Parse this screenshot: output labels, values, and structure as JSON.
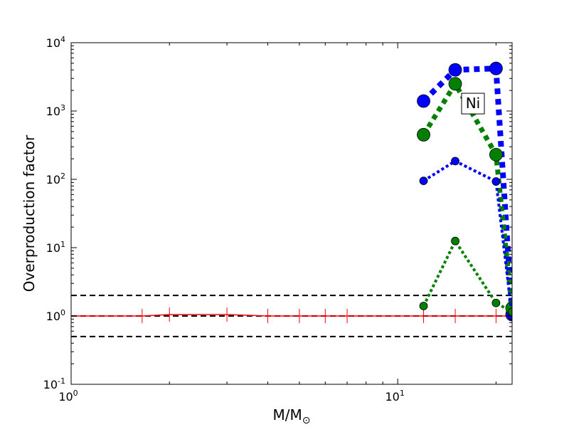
{
  "chart_data": {
    "type": "line",
    "xscale": "log",
    "yscale": "log",
    "xlim": [
      1,
      22.4
    ],
    "ylim": [
      0.1,
      10000
    ],
    "xlabel": {
      "main": "M/M",
      "sub": "⊙"
    },
    "ylabel": "Overproduction factor",
    "x_ticks": [
      {
        "value": 1,
        "base": "10",
        "exp": "0"
      },
      {
        "value": 10,
        "base": "10",
        "exp": "1"
      }
    ],
    "y_ticks": [
      {
        "value": 0.1,
        "base": "10",
        "exp": "-1"
      },
      {
        "value": 1,
        "base": "10",
        "exp": "0"
      },
      {
        "value": 10,
        "base": "10",
        "exp": "1"
      },
      {
        "value": 100,
        "base": "10",
        "exp": "2"
      },
      {
        "value": 1000,
        "base": "10",
        "exp": "3"
      },
      {
        "value": 10000,
        "base": "10",
        "exp": "4"
      }
    ],
    "reference_lines": [
      {
        "y": 2.0,
        "color": "#000000",
        "style": "dashed"
      },
      {
        "y": 1.0,
        "color": "#000000",
        "style": "dashed"
      },
      {
        "y": 0.5,
        "color": "#000000",
        "style": "dashed"
      }
    ],
    "series": [
      {
        "color": "#ff0000",
        "style": "solid",
        "width": 1.5,
        "marker": "tick",
        "markersize": 10,
        "x": [
          1.0,
          1.65,
          2.0,
          3.0,
          4.0,
          5.0,
          6.0,
          7.0,
          12.0,
          15.0,
          20.0,
          22.4
        ],
        "y": [
          1.0,
          1.0,
          1.05,
          1.05,
          1.0,
          1.0,
          1.0,
          1.0,
          1.0,
          1.0,
          1.0,
          1.0
        ]
      },
      {
        "color": "#0000ff",
        "style": "dotted",
        "width": 8,
        "marker": "circle",
        "markersize": 9,
        "x": [
          12,
          15,
          20,
          22.4
        ],
        "y": [
          1400,
          4000,
          4200,
          1.05
        ]
      },
      {
        "color": "#008000",
        "style": "dotted",
        "width": 7,
        "marker": "circle",
        "markersize": 9,
        "x": [
          12,
          15,
          20,
          22.4
        ],
        "y": [
          450,
          2500,
          230,
          1.3
        ]
      },
      {
        "color": "#0000ff",
        "style": "dotted",
        "width": 4,
        "marker": "circle",
        "markersize": 5.5,
        "x": [
          12,
          15,
          20,
          22.4
        ],
        "y": [
          95,
          185,
          93,
          1.0
        ]
      },
      {
        "color": "#008000",
        "style": "dotted",
        "width": 4,
        "marker": "circle",
        "markersize": 5.5,
        "x": [
          12,
          15,
          20,
          22.4
        ],
        "y": [
          1.4,
          12.5,
          1.55,
          1.15
        ]
      }
    ],
    "annotation": {
      "text": "Ni",
      "x": 17,
      "y": 1300
    }
  }
}
